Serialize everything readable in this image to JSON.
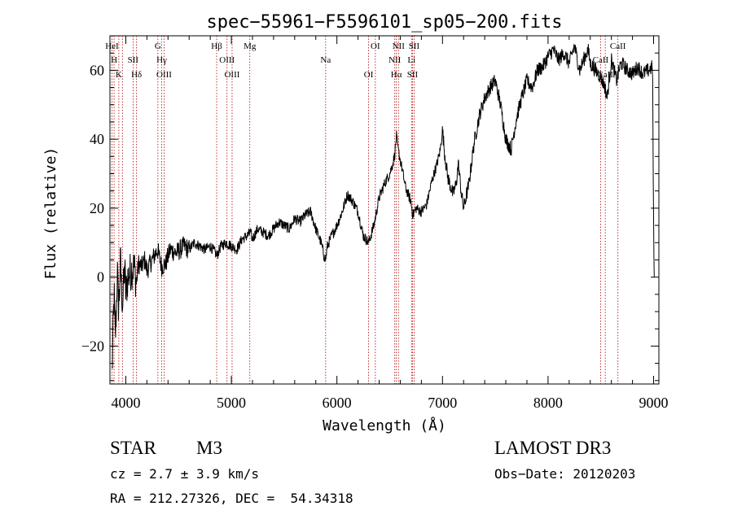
{
  "chart_data": {
    "type": "line",
    "title": "spec−55961−F5596101_sp05−200.fits",
    "xlabel": "Wavelength (Å)",
    "ylabel": "Flux (relative)",
    "xlim": [
      3850,
      9050
    ],
    "ylim": [
      -31,
      70
    ],
    "x_ticks": [
      4000,
      5000,
      6000,
      7000,
      8000,
      9000
    ],
    "y_ticks": [
      -20,
      0,
      20,
      40,
      60
    ],
    "y_tick_labels": [
      "−20",
      "0",
      "20",
      "40",
      "60"
    ],
    "x_minor_step": 200,
    "y_minor_step": 5,
    "series": [
      {
        "name": "flux",
        "x": [
          3870,
          3880,
          3890,
          3900,
          3910,
          3920,
          3930,
          3940,
          3950,
          3960,
          3970,
          3980,
          3990,
          4000,
          4020,
          4050,
          4080,
          4100,
          4120,
          4150,
          4180,
          4200,
          4250,
          4300,
          4340,
          4380,
          4420,
          4480,
          4550,
          4600,
          4650,
          4700,
          4750,
          4800,
          4850,
          4861,
          4900,
          4950,
          5000,
          5050,
          5100,
          5150,
          5180,
          5200,
          5250,
          5300,
          5350,
          5400,
          5450,
          5500,
          5550,
          5600,
          5650,
          5700,
          5750,
          5800,
          5850,
          5880,
          5893,
          5910,
          5950,
          6000,
          6050,
          6100,
          6150,
          6200,
          6250,
          6300,
          6350,
          6400,
          6450,
          6500,
          6530,
          6550,
          6563,
          6580,
          6600,
          6620,
          6650,
          6700,
          6720,
          6750,
          6800,
          6850,
          6900,
          6950,
          6980,
          7000,
          7020,
          7050,
          7100,
          7130,
          7150,
          7180,
          7200,
          7250,
          7300,
          7350,
          7400,
          7450,
          7500,
          7550,
          7600,
          7650,
          7700,
          7750,
          7800,
          7850,
          7900,
          7950,
          8000,
          8050,
          8100,
          8150,
          8200,
          8250,
          8300,
          8350,
          8380,
          8400,
          8450,
          8500,
          8540,
          8560,
          8600,
          8650,
          8680,
          8700,
          8750,
          8800,
          8850,
          8900,
          8950,
          8990,
          9000,
          9005,
          9010
        ],
        "y": [
          -28,
          -15,
          -5,
          -18,
          -10,
          2,
          -8,
          -5,
          5,
          -3,
          -8,
          -2,
          3,
          -5,
          0,
          2,
          3,
          -2,
          4,
          3,
          5,
          2,
          5,
          8,
          3,
          4,
          8,
          7,
          9,
          8,
          10,
          9,
          8,
          9,
          7,
          6,
          9,
          10,
          9,
          8,
          11,
          12,
          13,
          11,
          14,
          13,
          12,
          14,
          16,
          15,
          14,
          17,
          16,
          18,
          19,
          14,
          10,
          6,
          5,
          9,
          12,
          15,
          19,
          24,
          22,
          19,
          12,
          10,
          15,
          23,
          27,
          30,
          33,
          36,
          41,
          37,
          34,
          31,
          26,
          22,
          18,
          20,
          19,
          21,
          28,
          33,
          37,
          43,
          36,
          29,
          24,
          27,
          33,
          24,
          20,
          27,
          39,
          47,
          52,
          55,
          57,
          50,
          40,
          37,
          46,
          52,
          57,
          55,
          60,
          61,
          64,
          66,
          63,
          65,
          62,
          67,
          60,
          64,
          66,
          62,
          60,
          58,
          55,
          52,
          63,
          57,
          61,
          62,
          60,
          59,
          61,
          59,
          60,
          61,
          15,
          0,
          0
        ]
      }
    ],
    "lines": [
      {
        "x": 3869,
        "labels": [
          "HeI"
        ]
      },
      {
        "x": 3889,
        "labels": [
          "H"
        ]
      },
      {
        "x": 3934,
        "labels": [
          "K"
        ]
      },
      {
        "x": 3968,
        "labels": []
      },
      {
        "x": 4069,
        "labels": [
          "SII"
        ]
      },
      {
        "x": 4102,
        "labels": [
          "Hδ"
        ]
      },
      {
        "x": 4304,
        "labels": [
          "G"
        ]
      },
      {
        "x": 4340,
        "labels": [
          "Hγ"
        ]
      },
      {
        "x": 4363,
        "labels": [
          "OIII"
        ]
      },
      {
        "x": 4861,
        "labels": [
          "Hβ"
        ]
      },
      {
        "x": 4959,
        "labels": [
          "OIII"
        ]
      },
      {
        "x": 5007,
        "labels": [
          "OIII"
        ]
      },
      {
        "x": 5175,
        "labels": [
          "Mg"
        ]
      },
      {
        "x": 5893,
        "labels": [
          "Na"
        ]
      },
      {
        "x": 6300,
        "labels": [
          "OI"
        ]
      },
      {
        "x": 6364,
        "labels": [
          "OI"
        ]
      },
      {
        "x": 6548,
        "labels": [
          "NII"
        ]
      },
      {
        "x": 6563,
        "labels": [
          "Hα"
        ]
      },
      {
        "x": 6583,
        "labels": [
          "NII"
        ]
      },
      {
        "x": 6707,
        "labels": [
          "Li"
        ]
      },
      {
        "x": 6716,
        "labels": [
          "SII"
        ]
      },
      {
        "x": 6731,
        "labels": [
          "SII"
        ]
      },
      {
        "x": 8498,
        "labels": [
          "CaII"
        ]
      },
      {
        "x": 8542,
        "labels": [
          "CaII"
        ]
      },
      {
        "x": 8662,
        "labels": [
          "CaII"
        ]
      }
    ],
    "colors": {
      "spectrum": "#000000",
      "line_markers": "#b00000",
      "axes": "#000000"
    }
  },
  "info": {
    "object_class": "STAR",
    "subclass": "M3",
    "survey": "LAMOST DR3",
    "cz": "cz = 2.7 ± 3.9 km/s",
    "obs_date": "Obs−Date: 20120203",
    "coords": "RA = 212.27326, DEC =  54.34318"
  }
}
